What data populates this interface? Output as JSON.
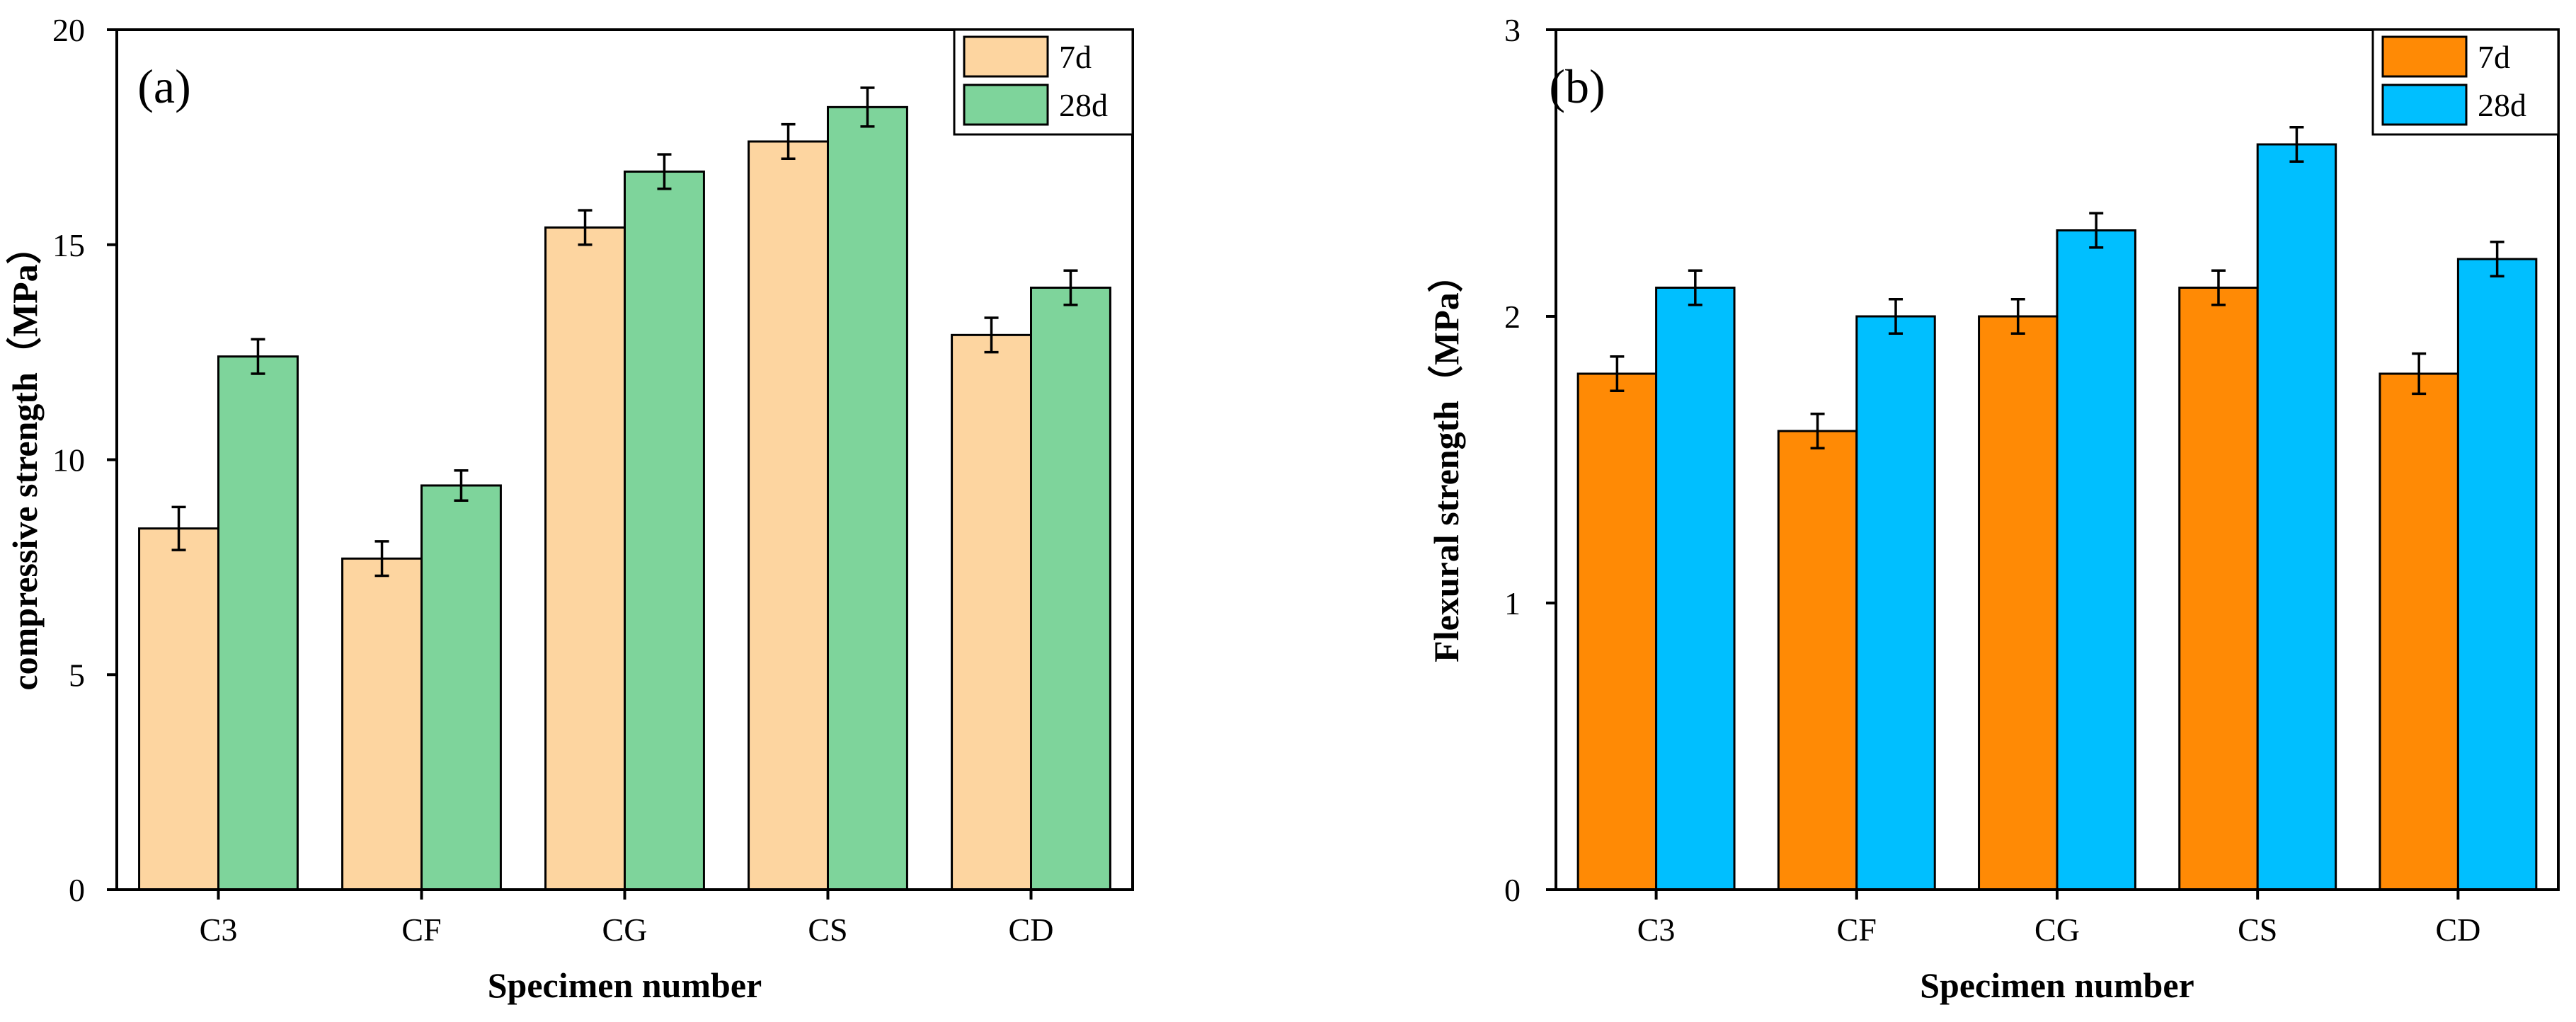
{
  "chart_data": [
    {
      "type": "bar",
      "panel_label": "(a)",
      "categories": [
        "C3",
        "CF",
        "CG",
        "CS",
        "CD"
      ],
      "series": [
        {
          "name": "7d",
          "values": [
            8.4,
            7.7,
            15.4,
            17.4,
            12.9
          ],
          "errors": [
            0.5,
            0.4,
            0.4,
            0.4,
            0.4
          ],
          "color": "#fdd5a0"
        },
        {
          "name": "28d",
          "values": [
            12.4,
            9.4,
            16.7,
            18.2,
            14.0
          ],
          "errors": [
            0.4,
            0.35,
            0.4,
            0.45,
            0.4
          ],
          "color": "#7ed49b"
        }
      ],
      "xlabel": "Specimen number",
      "ylabel": "compressive strength（MPa）",
      "ylim": [
        0,
        20
      ],
      "yticks": [
        0,
        5,
        10,
        15,
        20
      ],
      "grid": false,
      "legend_position": "top-right"
    },
    {
      "type": "bar",
      "panel_label": "(b)",
      "categories": [
        "C3",
        "CF",
        "CG",
        "CS",
        "CD"
      ],
      "series": [
        {
          "name": "7d",
          "values": [
            1.8,
            1.6,
            2.0,
            2.1,
            1.8
          ],
          "errors": [
            0.06,
            0.06,
            0.06,
            0.06,
            0.07
          ],
          "color": "#ff8a05"
        },
        {
          "name": "28d",
          "values": [
            2.1,
            2.0,
            2.3,
            2.6,
            2.2
          ],
          "errors": [
            0.06,
            0.06,
            0.06,
            0.06,
            0.06
          ],
          "color": "#00bfff"
        }
      ],
      "xlabel": "Specimen number",
      "ylabel": "Flexural strength（MPa）",
      "ylim": [
        0,
        3
      ],
      "yticks": [
        0,
        1,
        2,
        3
      ],
      "grid": false,
      "legend_position": "top-right"
    }
  ]
}
